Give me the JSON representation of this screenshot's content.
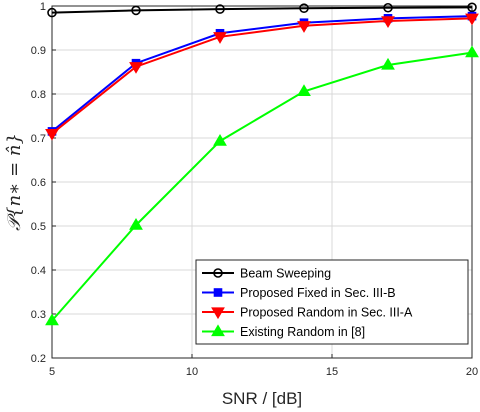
{
  "chart_data": {
    "type": "line",
    "xlabel": "SNR / [dB]",
    "ylabel": "𝒫{n∗ = n̂}",
    "xlim": [
      5,
      20
    ],
    "ylim": [
      0.2,
      1.0
    ],
    "x_ticks": [
      "5",
      "10",
      "15",
      "20"
    ],
    "y_ticks": [
      "0.2",
      "0.3",
      "0.4",
      "0.5",
      "0.6",
      "0.7",
      "0.8",
      "0.9",
      "1"
    ],
    "grid": true,
    "legend_position": "bottom-right",
    "x": [
      5,
      8,
      11,
      14,
      17,
      20
    ],
    "series": [
      {
        "name": "Beam Sweeping",
        "color": "#000000",
        "marker": "circle",
        "values": [
          0.985,
          0.99,
          0.993,
          0.995,
          0.996,
          0.997
        ]
      },
      {
        "name": "Proposed Fixed in Sec. III-B",
        "color": "#0000ff",
        "marker": "square",
        "values": [
          0.715,
          0.87,
          0.938,
          0.962,
          0.972,
          0.977
        ]
      },
      {
        "name": "Proposed Random in Sec. III-A",
        "color": "#ff0000",
        "marker": "triangle-down",
        "values": [
          0.71,
          0.862,
          0.93,
          0.955,
          0.966,
          0.972
        ]
      },
      {
        "name": "Existing Random in [8]",
        "color": "#00ff00",
        "marker": "triangle-up",
        "values": [
          0.285,
          0.502,
          0.693,
          0.806,
          0.866,
          0.894
        ]
      }
    ]
  }
}
